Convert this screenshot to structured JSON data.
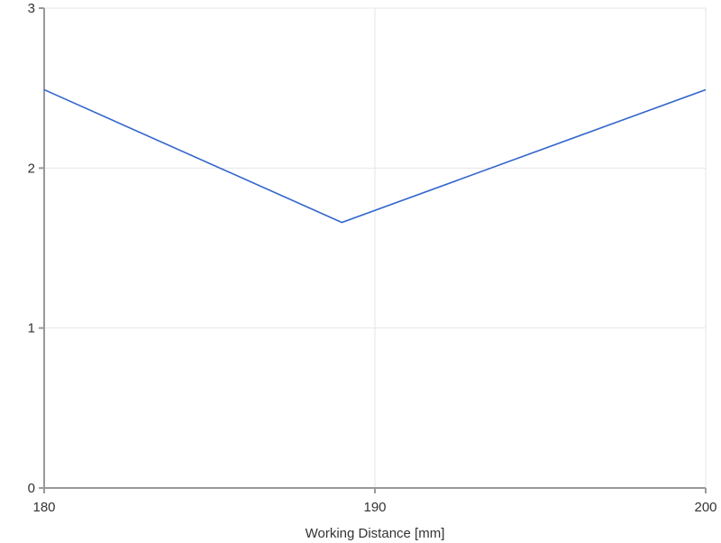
{
  "chart_data": {
    "type": "line",
    "title": "",
    "xlabel": "Working Distance [mm]",
    "ylabel": "",
    "xlim": [
      180,
      200
    ],
    "ylim": [
      0,
      3
    ],
    "x_ticks": [
      180,
      190,
      200
    ],
    "y_ticks": [
      0,
      1,
      2,
      3
    ],
    "grid": true,
    "series": [
      {
        "color": "#3366cc",
        "x": [
          180,
          189,
          200
        ],
        "y": [
          2.49,
          1.66,
          2.49
        ]
      }
    ]
  }
}
